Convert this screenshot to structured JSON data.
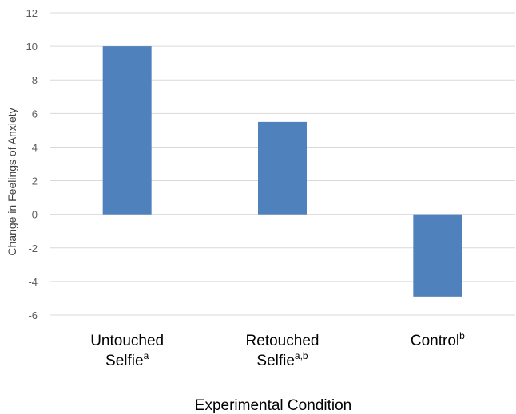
{
  "chart_data": {
    "type": "bar",
    "categories": [
      {
        "lines": [
          {
            "text": "Untouched"
          },
          {
            "text": "Selfie",
            "sup": "a"
          }
        ]
      },
      {
        "lines": [
          {
            "text": "Retouched"
          },
          {
            "text": "Selfie",
            "sup": "a,b"
          }
        ]
      },
      {
        "lines": [
          {
            "text": "Control",
            "sup": "b"
          }
        ]
      }
    ],
    "values": [
      10,
      5.5,
      -4.9
    ],
    "ylim": [
      -6,
      12
    ],
    "yticks": [
      12,
      10,
      8,
      6,
      4,
      2,
      0,
      -2,
      -4,
      -6
    ],
    "ylabel": "Change in Feelings of Anxiety",
    "xlabel": "Experimental Condition",
    "grid": true,
    "bar_color": "#4F81BD",
    "grid_color": "#D9D9D9"
  }
}
